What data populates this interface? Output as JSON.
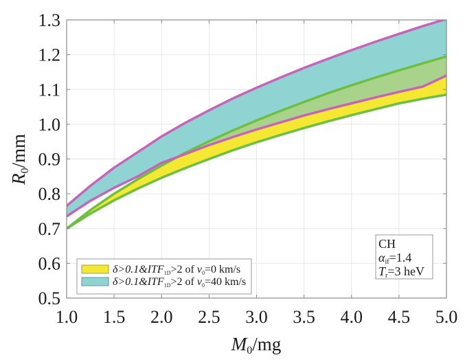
{
  "chart_data": {
    "type": "area",
    "xlabel": {
      "main": "M",
      "sub": "0",
      "unit": "/mg"
    },
    "ylabel": {
      "main": "R",
      "sub": "0",
      "unit": "/mm"
    },
    "xlim": [
      1.0,
      5.0
    ],
    "ylim": [
      0.5,
      1.3
    ],
    "grid": true,
    "x_ticks": [
      "1.0",
      "1.5",
      "2.0",
      "2.5",
      "3.0",
      "3.5",
      "4.0",
      "4.5",
      "5.0"
    ],
    "y_ticks": [
      "0.5",
      "0.6",
      "0.7",
      "0.8",
      "0.9",
      "1.0",
      "1.1",
      "1.2",
      "1.3"
    ],
    "x": [
      1.0,
      1.25,
      1.5,
      1.75,
      2.0,
      2.25,
      2.5,
      2.75,
      3.0,
      3.25,
      3.5,
      3.75,
      4.0,
      4.25,
      4.5,
      4.75,
      5.0
    ],
    "series": [
      {
        "name": "v0=40 km/s",
        "fill": "#8fd3d3",
        "upper": [
          0.765,
          0.823,
          0.875,
          0.92,
          0.965,
          1.004,
          1.04,
          1.074,
          1.105,
          1.134,
          1.162,
          1.188,
          1.213,
          1.237,
          1.26,
          1.282,
          1.303
        ],
        "lower": [
          0.735,
          0.78,
          0.817,
          0.85,
          0.889,
          0.914,
          0.94,
          0.963,
          0.985,
          1.005,
          1.025,
          1.043,
          1.06,
          1.077,
          1.093,
          1.108,
          1.14
        ],
        "edge_upper": "#c763b8",
        "edge_lower": "#c763b8"
      },
      {
        "name": "v0=0 km/s",
        "fill": "#f5e832",
        "upper": [
          0.7,
          0.753,
          0.8,
          0.842,
          0.881,
          0.918,
          0.951,
          0.982,
          1.011,
          1.038,
          1.064,
          1.089,
          1.112,
          1.134,
          1.155,
          1.175,
          1.195
        ],
        "lower": [
          0.7,
          0.743,
          0.781,
          0.815,
          0.846,
          0.874,
          0.9,
          0.925,
          0.948,
          0.969,
          0.989,
          1.008,
          1.026,
          1.043,
          1.06,
          1.073,
          1.085
        ],
        "edge_upper": "#6cc040",
        "edge_lower": "#6cc040"
      }
    ],
    "overlap_fill": "#a9d38a",
    "legend": {
      "placement": "bottom-left",
      "entries": [
        {
          "prefix": "δ>0.1&",
          "itf": "ITF",
          "itf_sub": "1D",
          "mid": ">2 of ",
          "v": "v",
          "v_sub": "0",
          "suffix": "=0 km/s",
          "color": "#f5e832"
        },
        {
          "prefix": "δ>0.1&",
          "itf": "ITF",
          "itf_sub": "1D",
          "mid": ">2 of ",
          "v": "v",
          "v_sub": "0",
          "suffix": "=40 km/s",
          "color": "#8fd3d3"
        }
      ]
    },
    "annotation": {
      "line1": "CH",
      "line2_sym": "α",
      "line2_sub": "if",
      "line2_val": "=1.4",
      "line3_sym": "T",
      "line3_sub": "r",
      "line3_val": "=3 heV"
    }
  }
}
